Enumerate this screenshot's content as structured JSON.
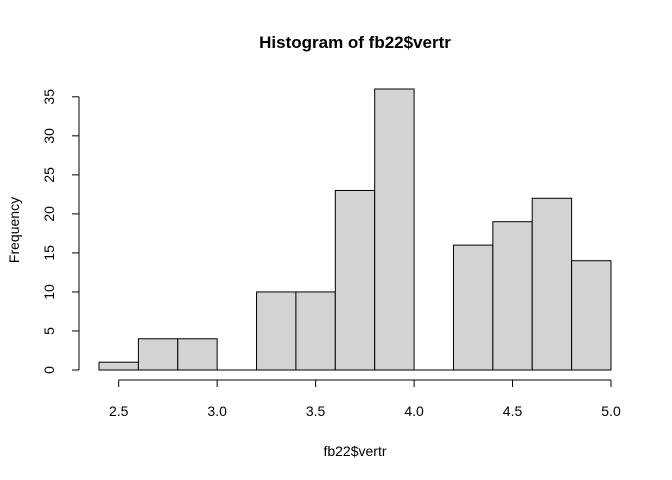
{
  "chart_data": {
    "type": "bar",
    "title": "Histogram of fb22$vertr",
    "xlabel": "fb22$vertr",
    "ylabel": "Frequency",
    "bin_width": 0.2,
    "bins": [
      {
        "start": 2.4,
        "end": 2.6,
        "value": 1
      },
      {
        "start": 2.6,
        "end": 2.8,
        "value": 4
      },
      {
        "start": 2.8,
        "end": 3.0,
        "value": 4
      },
      {
        "start": 3.0,
        "end": 3.2,
        "value": 0
      },
      {
        "start": 3.2,
        "end": 3.4,
        "value": 10
      },
      {
        "start": 3.4,
        "end": 3.6,
        "value": 10
      },
      {
        "start": 3.6,
        "end": 3.8,
        "value": 23
      },
      {
        "start": 3.8,
        "end": 4.0,
        "value": 36
      },
      {
        "start": 4.0,
        "end": 4.2,
        "value": 0
      },
      {
        "start": 4.2,
        "end": 4.4,
        "value": 16
      },
      {
        "start": 4.4,
        "end": 4.6,
        "value": 19
      },
      {
        "start": 4.6,
        "end": 4.8,
        "value": 22
      },
      {
        "start": 4.8,
        "end": 5.0,
        "value": 14
      }
    ],
    "x_ticks": [
      "2.5",
      "3.0",
      "3.5",
      "4.0",
      "4.5",
      "5.0"
    ],
    "y_ticks": [
      "0",
      "5",
      "10",
      "15",
      "20",
      "25",
      "30",
      "35"
    ],
    "xlim": [
      2.4,
      5.0
    ],
    "ylim": [
      0,
      36
    ],
    "bar_fill": "#d3d3d3",
    "bar_stroke": "#000000",
    "grid": false,
    "legend": "none"
  }
}
